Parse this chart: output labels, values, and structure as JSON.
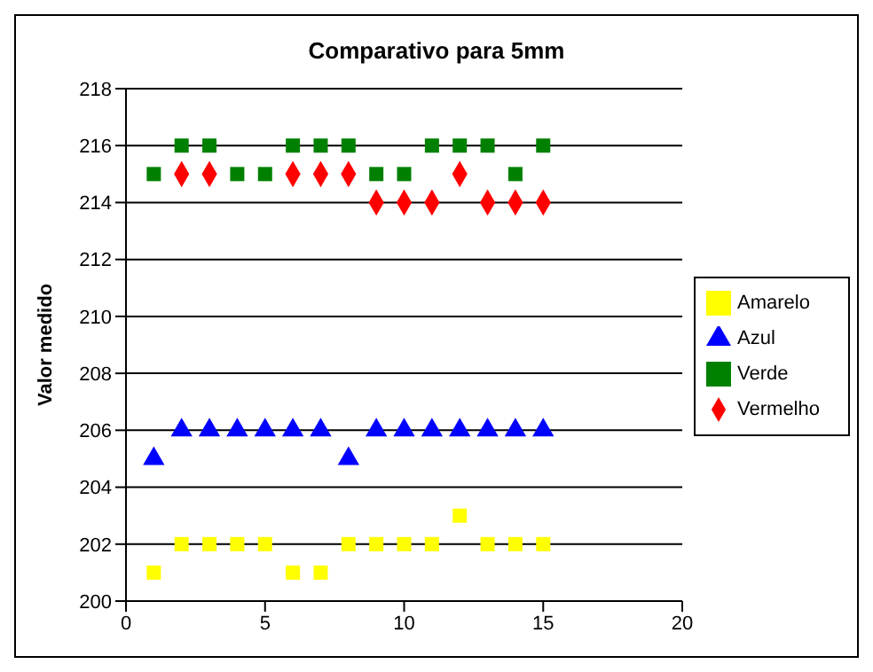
{
  "chart_data": {
    "type": "scatter",
    "title": "Comparativo para 5mm",
    "ylabel": "Valor medido",
    "x": [
      1,
      2,
      3,
      4,
      5,
      6,
      7,
      8,
      9,
      10,
      11,
      12,
      13,
      14,
      15
    ],
    "series": [
      {
        "name": "Vermelho",
        "color": "#ff0000",
        "marker": "diamond",
        "values": [
          null,
          215,
          215,
          null,
          null,
          215,
          215,
          215,
          214,
          214,
          214,
          215,
          214,
          214,
          214
        ]
      },
      {
        "name": "Verde",
        "color": "#008000",
        "marker": "square",
        "values": [
          215,
          216,
          216,
          215,
          215,
          216,
          216,
          216,
          215,
          215,
          216,
          216,
          216,
          215,
          216
        ]
      },
      {
        "name": "Azul",
        "color": "#0000ff",
        "marker": "triangle",
        "values": [
          205,
          206,
          206,
          206,
          206,
          206,
          206,
          205,
          206,
          206,
          206,
          206,
          206,
          206,
          206
        ]
      },
      {
        "name": "Amarelo",
        "color": "#ffff00",
        "marker": "square",
        "values": [
          201,
          202,
          202,
          202,
          202,
          201,
          201,
          202,
          202,
          202,
          202,
          203,
          202,
          202,
          202
        ]
      }
    ],
    "xlim": [
      0,
      20
    ],
    "xticks": [
      0,
      5,
      10,
      15,
      20
    ],
    "ylim": [
      200,
      218
    ],
    "yticks": [
      200,
      202,
      204,
      206,
      208,
      210,
      212,
      214,
      216,
      218
    ],
    "grid": "y",
    "legend": "right"
  }
}
